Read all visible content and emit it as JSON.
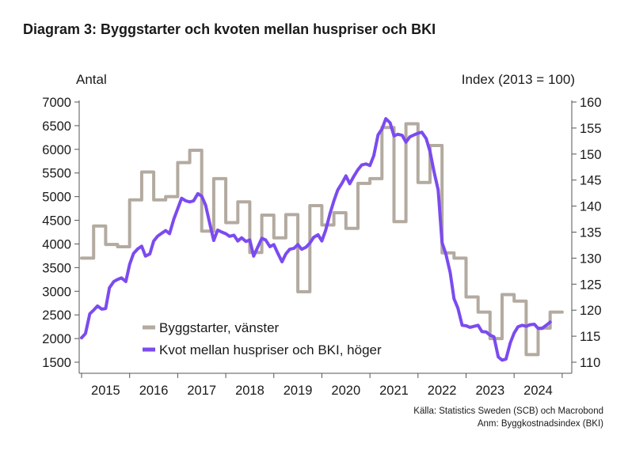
{
  "title": "Diagram 3: Byggstarter och kvoten mellan huspriser och BKI",
  "source_line1": "Källa: Statistics Sweden (SCB) och Macrobond",
  "source_line2": "Anm: Byggkostnadsindex (BKI)",
  "chart_data": {
    "type": "line",
    "x_axis": {
      "tick_labels": [
        "2015",
        "2016",
        "2017",
        "2018",
        "2019",
        "2020",
        "2021",
        "2022",
        "2023",
        "2024"
      ],
      "xlim": [
        2014.95,
        2025.2
      ]
    },
    "y_left": {
      "label": "Antal",
      "ylim": [
        1500,
        7000
      ],
      "ticks": [
        1500,
        2000,
        2500,
        3000,
        3500,
        4000,
        4500,
        5000,
        5500,
        6000,
        6500,
        7000
      ]
    },
    "y_right": {
      "label": "Index (2013 = 100)",
      "ylim": [
        110,
        160
      ],
      "ticks": [
        110,
        115,
        120,
        125,
        130,
        135,
        140,
        145,
        150,
        155,
        160
      ]
    },
    "legend": {
      "position": "bottom-left"
    },
    "grid": false,
    "colors": {
      "byggstarter": "#b3aaa0",
      "kvot": "#7b4bef",
      "axis": "#555555"
    },
    "series": [
      {
        "name": "Byggstarter, vänster",
        "axis": "left",
        "x": [
          2015.0,
          2015.25,
          2015.5,
          2015.75,
          2016.0,
          2016.25,
          2016.5,
          2016.75,
          2017.0,
          2017.25,
          2017.5,
          2017.75,
          2018.0,
          2018.25,
          2018.5,
          2018.75,
          2019.0,
          2019.25,
          2019.5,
          2019.75,
          2020.0,
          2020.25,
          2020.5,
          2020.75,
          2021.0,
          2021.25,
          2021.5,
          2021.75,
          2022.0,
          2022.25,
          2022.5,
          2022.75,
          2023.0,
          2023.25,
          2023.5,
          2023.75,
          2024.0,
          2024.25,
          2024.5,
          2024.75
        ],
        "values": [
          3700,
          4380,
          3990,
          3940,
          4930,
          5520,
          4930,
          5000,
          5720,
          5980,
          4270,
          5380,
          4450,
          4890,
          3820,
          4610,
          4130,
          4620,
          2990,
          4810,
          4400,
          4660,
          4330,
          5280,
          5380,
          6460,
          4470,
          6540,
          5300,
          6080,
          3810,
          3700,
          2880,
          2560,
          2000,
          2930,
          2790,
          1660,
          2220,
          2560
        ]
      },
      {
        "name": "Kvot mellan huspriser och BKI, höger",
        "axis": "right",
        "x": [
          2015.0,
          2015.08,
          2015.17,
          2015.25,
          2015.33,
          2015.42,
          2015.5,
          2015.58,
          2015.67,
          2015.75,
          2015.83,
          2015.92,
          2016.0,
          2016.08,
          2016.17,
          2016.25,
          2016.33,
          2016.42,
          2016.5,
          2016.58,
          2016.67,
          2016.75,
          2016.83,
          2016.92,
          2017.0,
          2017.08,
          2017.17,
          2017.25,
          2017.33,
          2017.42,
          2017.5,
          2017.58,
          2017.67,
          2017.75,
          2017.83,
          2017.92,
          2018.0,
          2018.08,
          2018.17,
          2018.25,
          2018.33,
          2018.42,
          2018.5,
          2018.58,
          2018.67,
          2018.75,
          2018.83,
          2018.92,
          2019.0,
          2019.08,
          2019.17,
          2019.25,
          2019.33,
          2019.42,
          2019.5,
          2019.58,
          2019.67,
          2019.75,
          2019.83,
          2019.92,
          2020.0,
          2020.08,
          2020.17,
          2020.25,
          2020.33,
          2020.42,
          2020.5,
          2020.58,
          2020.67,
          2020.75,
          2020.83,
          2020.92,
          2021.0,
          2021.08,
          2021.17,
          2021.25,
          2021.33,
          2021.42,
          2021.5,
          2021.58,
          2021.67,
          2021.75,
          2021.83,
          2021.92,
          2022.0,
          2022.08,
          2022.17,
          2022.25,
          2022.33,
          2022.42,
          2022.5,
          2022.58,
          2022.67,
          2022.75,
          2022.83,
          2022.92,
          2023.0,
          2023.08,
          2023.17,
          2023.25,
          2023.33,
          2023.42,
          2023.5,
          2023.58,
          2023.67,
          2023.75,
          2023.83,
          2023.92,
          2024.0,
          2024.08,
          2024.17,
          2024.25,
          2024.33,
          2024.42,
          2024.5,
          2024.58,
          2024.67,
          2024.75
        ],
        "values": [
          114.7,
          115.5,
          119.3,
          120.0,
          120.8,
          120.2,
          120.3,
          124.3,
          125.5,
          125.9,
          126.2,
          125.5,
          128.8,
          130.9,
          131.8,
          132.3,
          130.4,
          130.8,
          133.3,
          134.2,
          134.8,
          135.3,
          134.7,
          137.5,
          139.5,
          141.5,
          141.0,
          140.8,
          141.0,
          142.4,
          141.9,
          140.2,
          136.5,
          133.4,
          135.4,
          135.0,
          134.7,
          134.2,
          134.4,
          133.3,
          133.9,
          133.2,
          133.5,
          130.4,
          132.2,
          133.8,
          133.5,
          132.2,
          132.6,
          131.0,
          129.3,
          130.8,
          131.7,
          131.9,
          132.6,
          131.7,
          132.1,
          132.9,
          134.0,
          134.5,
          133.3,
          135.4,
          138.6,
          141.0,
          143.1,
          144.4,
          145.8,
          144.3,
          145.8,
          147.0,
          147.9,
          148.1,
          147.8,
          149.7,
          153.7,
          154.8,
          156.8,
          156.0,
          153.5,
          153.8,
          153.6,
          152.3,
          153.3,
          153.7,
          154.0,
          154.2,
          153.0,
          150.5,
          146.8,
          143.1,
          133.0,
          130.8,
          127.2,
          122.2,
          120.4,
          117.1,
          117.0,
          116.7,
          116.9,
          117.1,
          115.9,
          115.8,
          115.2,
          114.9,
          111.0,
          110.4,
          110.6,
          113.7,
          115.6,
          116.8,
          117.1,
          116.9,
          117.2,
          117.3,
          116.5,
          116.5,
          117.1,
          117.7
        ]
      }
    ]
  }
}
